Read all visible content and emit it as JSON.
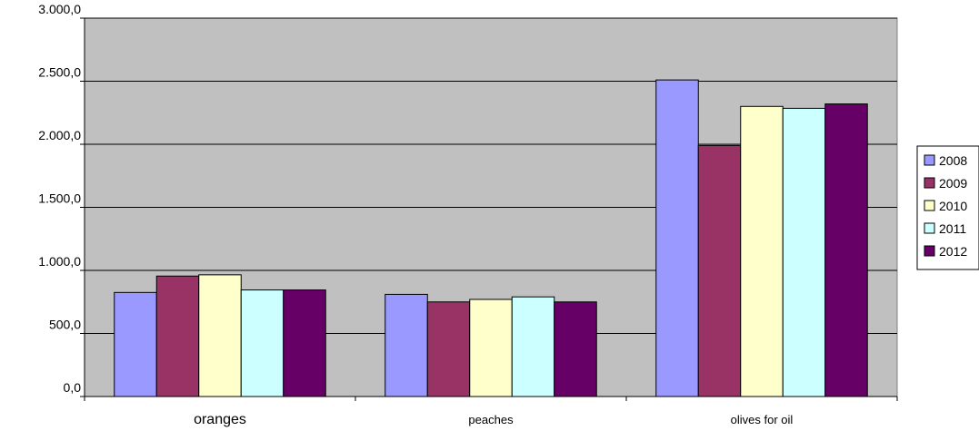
{
  "chart_data": {
    "type": "bar",
    "categories": [
      "oranges",
      "peaches",
      "olives for oil"
    ],
    "series": [
      {
        "name": "2008",
        "color": "#9999ff",
        "values": [
          825,
          810,
          2510
        ]
      },
      {
        "name": "2009",
        "color": "#993366",
        "values": [
          955,
          750,
          1990
        ]
      },
      {
        "name": "2010",
        "color": "#ffffcc",
        "values": [
          965,
          770,
          2300
        ]
      },
      {
        "name": "2011",
        "color": "#ccffff",
        "values": [
          845,
          790,
          2285
        ]
      },
      {
        "name": "2012",
        "color": "#660066",
        "values": [
          845,
          750,
          2320
        ]
      }
    ],
    "y_ticks": [
      "0,0",
      "500,0",
      "1.000,0",
      "1.500,0",
      "2.000,0",
      "2.500,0",
      "3.000,0"
    ],
    "ylim": [
      0,
      3000
    ],
    "plot_background": "#c0c0c0",
    "grid": true,
    "legend_position": "right"
  }
}
